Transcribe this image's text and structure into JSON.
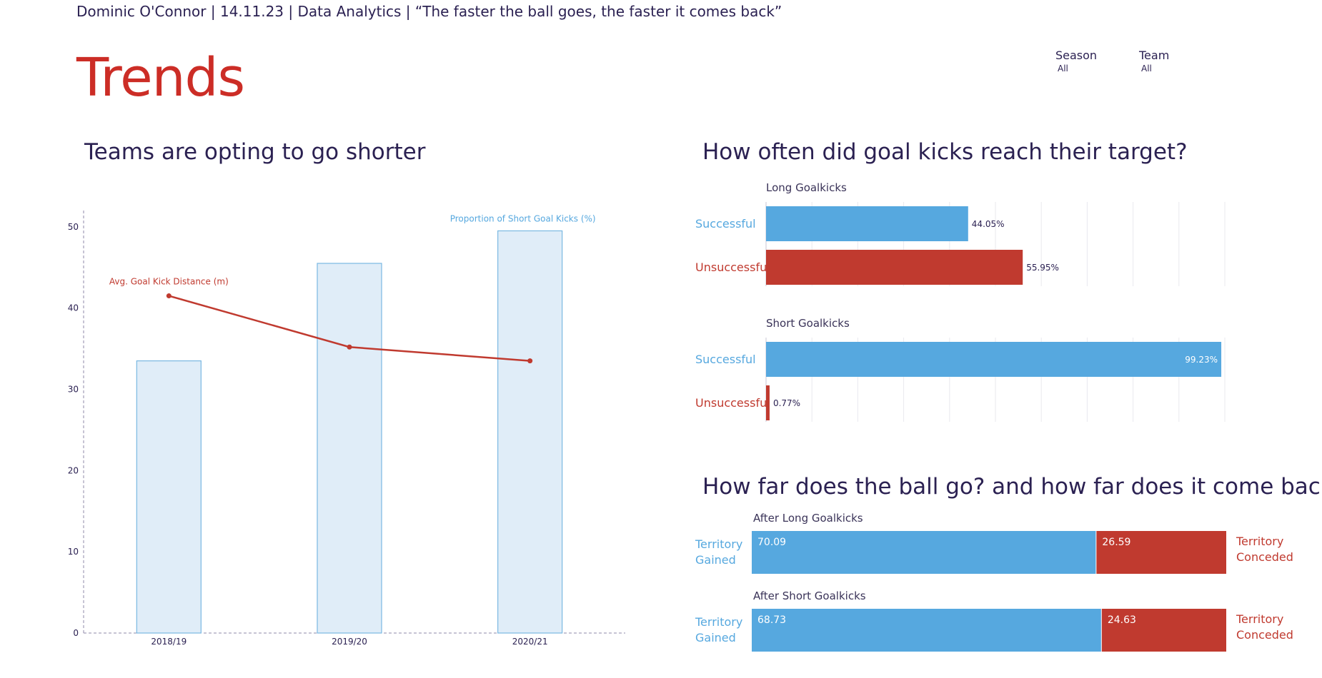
{
  "header": {
    "text": "Dominic O'Connor | 14.11.23 | Data Analytics | “The faster the ball goes, the faster it comes back”"
  },
  "page_title": "Trends",
  "filters": [
    {
      "label": "Season",
      "value": "All"
    },
    {
      "label": "Team",
      "value": "All"
    }
  ],
  "colors": {
    "blue": "#56a8df",
    "red": "#c03a2f",
    "light_blue_fill": "#e0edf8",
    "light_blue_stroke": "#7ab8e2",
    "navy": "#2b2152"
  },
  "chart_data": [
    {
      "type": "bar",
      "title": "Teams are opting to go shorter",
      "categories": [
        "2018/19",
        "2019/20",
        "2020/21"
      ],
      "yticks": [
        0,
        10,
        20,
        30,
        40,
        50
      ],
      "ylim": [
        0,
        52
      ],
      "series": [
        {
          "name": "Proportion of Short Goal Kicks (%)",
          "type": "bar",
          "values": [
            33.5,
            45.5,
            49.5
          ]
        },
        {
          "name": "Avg. Goal Kick Distance (m)",
          "type": "line",
          "values": [
            41.5,
            35.2,
            33.5
          ]
        }
      ]
    },
    {
      "type": "bar",
      "title": "How often did goal kicks reach their target?",
      "groups": [
        {
          "name": "Long Goalkicks",
          "categories": [
            "Successful",
            "Unsuccessful"
          ],
          "values": [
            44.05,
            55.95
          ],
          "labels": [
            "44.05%",
            "55.95%"
          ]
        },
        {
          "name": "Short Goalkicks",
          "categories": [
            "Successful",
            "Unsuccessful"
          ],
          "values": [
            99.23,
            0.77
          ],
          "labels": [
            "99.23%",
            "0.77%"
          ]
        }
      ],
      "xlim": [
        0,
        100
      ]
    },
    {
      "type": "bar",
      "title": "How far does the ball go? and how far does it come back?",
      "groups": [
        {
          "name": "After Long Goalkicks",
          "values": [
            70.09,
            26.59
          ],
          "labels": [
            "70.09",
            "26.59"
          ]
        },
        {
          "name": "After Short Goalkicks",
          "values": [
            68.73,
            24.63
          ],
          "labels": [
            "68.73",
            "24.63"
          ]
        }
      ],
      "series_labels": {
        "gained": [
          "Territory",
          "Gained"
        ],
        "conceded": [
          "Territory",
          "Conceded"
        ]
      }
    }
  ]
}
